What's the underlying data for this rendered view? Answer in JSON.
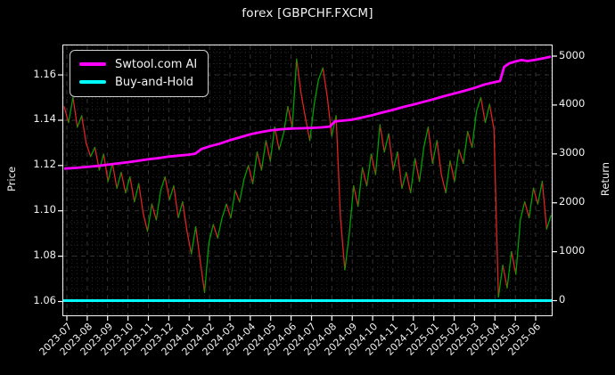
{
  "window": {
    "title": "forex [GBPCHF.FXCM]"
  },
  "colors": {
    "background": "#000000",
    "text": "#f2f2f2",
    "axis": "#ffffff",
    "grid_major": "#4d4d4d",
    "grid_minor": "#262626",
    "ai_line": "#ff00ff",
    "buyhold_line": "#00ffff",
    "price_up": "#00a000",
    "price_down": "#dd2222"
  },
  "chart_data": {
    "type": "line",
    "title": "forex [GBPCHF.FXCM]",
    "grid": true,
    "legend_position": "upper-left",
    "legend": {
      "entries": [
        {
          "label": "Swtool.com AI",
          "color": "#ff00ff"
        },
        {
          "label": "Buy-and-Hold",
          "color": "#00ffff"
        }
      ]
    },
    "x_axis": {
      "tick_labels": [
        "2023-07",
        "2023-08",
        "2023-09",
        "2023-10",
        "2023-11",
        "2023-12",
        "2024-01",
        "2024-02",
        "2024-03",
        "2024-04",
        "2024-05",
        "2024-06",
        "2024-07",
        "2024-08",
        "2024-09",
        "2024-10",
        "2024-11",
        "2024-12",
        "2025-01",
        "2025-02",
        "2025-03",
        "2025-04",
        "2025-05",
        "2025-06"
      ],
      "range": [
        -0.175,
        23.785
      ],
      "units": "months since 2023-07"
    },
    "left_axis": {
      "label": "Price",
      "tick_values": [
        1.06,
        1.08,
        1.1,
        1.12,
        1.14,
        1.16
      ],
      "tick_labels": [
        "1.06",
        "1.08",
        "1.10",
        "1.12",
        "1.14",
        "1.16"
      ],
      "range": [
        1.0539,
        1.173
      ],
      "minor_step": 0.005
    },
    "right_axis": {
      "label": "Return",
      "tick_values": [
        0,
        1000,
        2000,
        3000,
        4000,
        5000
      ],
      "tick_labels": [
        "0",
        "1000",
        "2000",
        "3000",
        "4000",
        "5000"
      ],
      "range": [
        -300.5,
        5218.6
      ]
    },
    "series": {
      "price": {
        "name": "GBPCHF.FXCM price",
        "axis": "left",
        "up_color": "#00a000",
        "down_color": "#dd2222",
        "x_start_month": -0.13,
        "x_end_month": 23.75,
        "values": [
          1.146,
          1.139,
          1.15,
          1.137,
          1.142,
          1.13,
          1.124,
          1.128,
          1.118,
          1.125,
          1.113,
          1.121,
          1.11,
          1.117,
          1.108,
          1.115,
          1.104,
          1.112,
          1.099,
          1.091,
          1.103,
          1.096,
          1.109,
          1.115,
          1.105,
          1.111,
          1.097,
          1.104,
          1.091,
          1.081,
          1.093,
          1.078,
          1.064,
          1.086,
          1.094,
          1.088,
          1.097,
          1.103,
          1.097,
          1.109,
          1.104,
          1.114,
          1.12,
          1.112,
          1.126,
          1.118,
          1.131,
          1.122,
          1.137,
          1.127,
          1.134,
          1.146,
          1.137,
          1.167,
          1.152,
          1.141,
          1.131,
          1.147,
          1.158,
          1.163,
          1.15,
          1.133,
          1.142,
          1.097,
          1.074,
          1.09,
          1.111,
          1.102,
          1.119,
          1.111,
          1.125,
          1.116,
          1.138,
          1.126,
          1.134,
          1.118,
          1.126,
          1.11,
          1.117,
          1.108,
          1.123,
          1.113,
          1.128,
          1.137,
          1.121,
          1.131,
          1.116,
          1.108,
          1.122,
          1.113,
          1.127,
          1.121,
          1.135,
          1.128,
          1.144,
          1.15,
          1.139,
          1.147,
          1.136,
          1.062,
          1.076,
          1.066,
          1.082,
          1.072,
          1.096,
          1.104,
          1.097,
          1.11,
          1.103,
          1.113,
          1.092,
          1.098
        ]
      },
      "ai_return": {
        "name": "Swtool.com AI",
        "axis": "right",
        "color": "#ff00ff",
        "x_months": [
          -0.13,
          0.5,
          1,
          1.5,
          2,
          2.5,
          3,
          3.5,
          4,
          4.5,
          5,
          5.5,
          6,
          6.3,
          6.6,
          7,
          7.5,
          8,
          8.5,
          9,
          9.5,
          10,
          10.5,
          11,
          11.5,
          12,
          12.5,
          12.9,
          13.15,
          13.5,
          14,
          14.5,
          15,
          15.5,
          16,
          16.5,
          17,
          17.5,
          18,
          18.5,
          19,
          19.5,
          20,
          20.5,
          21,
          21.25,
          21.45,
          21.7,
          22,
          22.3,
          22.6,
          23,
          23.3,
          23.75
        ],
        "values": [
          2700,
          2715,
          2735,
          2755,
          2780,
          2805,
          2830,
          2860,
          2890,
          2915,
          2945,
          2965,
          2985,
          3005,
          3100,
          3155,
          3210,
          3280,
          3340,
          3400,
          3445,
          3480,
          3505,
          3520,
          3525,
          3532,
          3542,
          3560,
          3665,
          3680,
          3700,
          3745,
          3795,
          3850,
          3900,
          3960,
          4010,
          4065,
          4120,
          4180,
          4235,
          4290,
          4350,
          4420,
          4470,
          4490,
          4780,
          4850,
          4890,
          4920,
          4900,
          4925,
          4950,
          4990
        ]
      },
      "buy_and_hold": {
        "name": "Buy-and-Hold",
        "axis": "right",
        "color": "#00ffff",
        "x_months": [
          -0.175,
          23.785
        ],
        "values": [
          0,
          0
        ]
      }
    }
  }
}
